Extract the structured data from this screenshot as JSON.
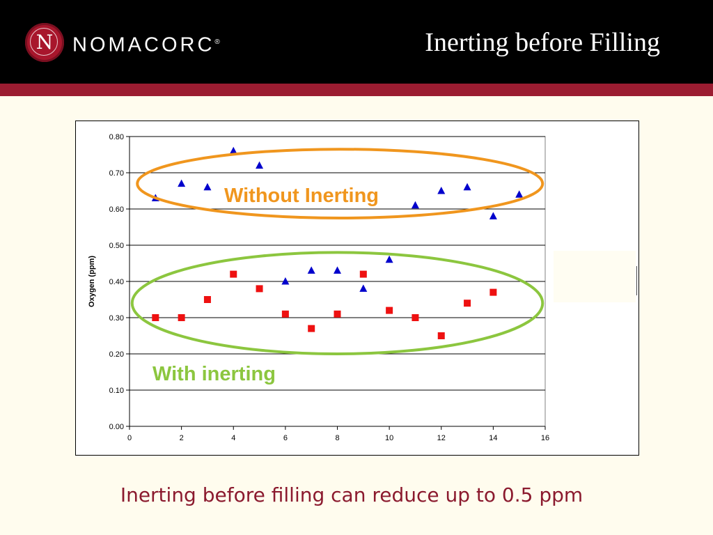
{
  "header": {
    "logo_letter": "N",
    "logo_word": "NOMACORC",
    "logo_mark": "®",
    "title": "Inerting before Filling"
  },
  "colors": {
    "header_bg": "#000000",
    "band": "#9b1c31",
    "slide_bg": "#fffcee",
    "footer_text": "#8b1a2e",
    "without_series": "#0000cc",
    "with_series": "#ee1111",
    "without_ellipse": "#f0961e",
    "with_ellipse": "#8cc63f"
  },
  "chart_data": {
    "type": "scatter",
    "ylabel": "Oxygen (ppm)",
    "xlabel": "",
    "xlim": [
      0,
      16
    ],
    "ylim": [
      0,
      0.8
    ],
    "x_ticks": [
      "0",
      "2",
      "4",
      "6",
      "8",
      "10",
      "12",
      "14",
      "16"
    ],
    "y_ticks": [
      "0.00",
      "0.10",
      "0.20",
      "0.30",
      "0.40",
      "0.50",
      "0.60",
      "0.70",
      "0.80"
    ],
    "grid": "horizontal",
    "series": [
      {
        "marker": "triangle",
        "color": "#0000cc",
        "points": [
          {
            "x": 1,
            "y": 0.63
          },
          {
            "x": 2,
            "y": 0.67
          },
          {
            "x": 3,
            "y": 0.66
          },
          {
            "x": 4,
            "y": 0.76
          },
          {
            "x": 5,
            "y": 0.72
          },
          {
            "x": 6,
            "y": 0.4
          },
          {
            "x": 7,
            "y": 0.43
          },
          {
            "x": 8,
            "y": 0.43
          },
          {
            "x": 9,
            "y": 0.38
          },
          {
            "x": 10,
            "y": 0.46
          },
          {
            "x": 11,
            "y": 0.61
          },
          {
            "x": 12,
            "y": 0.65
          },
          {
            "x": 13,
            "y": 0.66
          },
          {
            "x": 14,
            "y": 0.58
          },
          {
            "x": 15,
            "y": 0.64
          }
        ]
      },
      {
        "marker": "square",
        "color": "#ee1111",
        "points": [
          {
            "x": 1,
            "y": 0.3
          },
          {
            "x": 2,
            "y": 0.3
          },
          {
            "x": 3,
            "y": 0.35
          },
          {
            "x": 4,
            "y": 0.42
          },
          {
            "x": 5,
            "y": 0.38
          },
          {
            "x": 6,
            "y": 0.31
          },
          {
            "x": 7,
            "y": 0.27
          },
          {
            "x": 8,
            "y": 0.31
          },
          {
            "x": 9,
            "y": 0.42
          },
          {
            "x": 10,
            "y": 0.32
          },
          {
            "x": 11,
            "y": 0.3
          },
          {
            "x": 12,
            "y": 0.25
          },
          {
            "x": 13,
            "y": 0.34
          },
          {
            "x": 14,
            "y": 0.37
          }
        ]
      }
    ],
    "annotations": [
      {
        "text": "Without Inerting",
        "color": "#f0961e",
        "x_range": [
          0.3,
          15.9
        ],
        "y_range": [
          0.575,
          0.765
        ]
      },
      {
        "text": "With inerting",
        "color": "#8cc63f",
        "x_range": [
          0.1,
          15.9
        ],
        "y_range": [
          0.2,
          0.48
        ]
      }
    ]
  },
  "footer": {
    "text": "Inerting before filling can reduce up to 0.5 ppm"
  }
}
